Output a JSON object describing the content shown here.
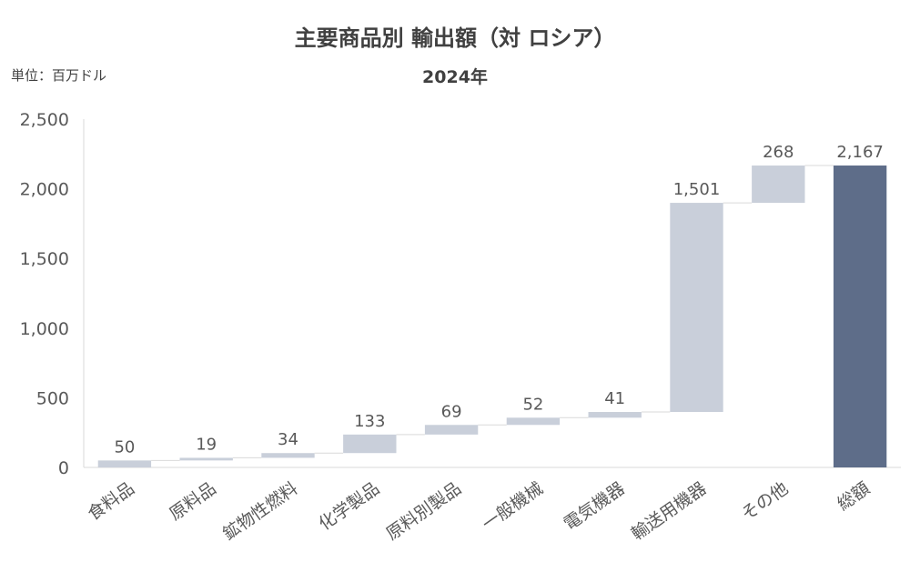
{
  "chart_data": {
    "type": "bar",
    "subtype": "waterfall",
    "title": "主要商品別 輸出額（対 ロシア）",
    "subtitle": "2024年",
    "unit_label": "単位：百万ドル",
    "categories": [
      "食料品",
      "原料品",
      "鉱物性燃料",
      "化学製品",
      "原料別製品",
      "一般機械",
      "電気機器",
      "輸送用機器",
      "その他",
      "総額"
    ],
    "values": [
      50,
      19,
      34,
      133,
      69,
      52,
      41,
      1501,
      268,
      2167
    ],
    "value_labels": [
      "50",
      "19",
      "34",
      "133",
      "69",
      "52",
      "41",
      "1,501",
      "268",
      "2,167"
    ],
    "total_index": 9,
    "ylim": [
      0,
      2500
    ],
    "yticks": [
      0,
      500,
      1000,
      1500,
      2000,
      2500
    ],
    "ytick_labels": [
      "0",
      "500",
      "1,000",
      "1,500",
      "2,000",
      "2,500"
    ],
    "grid": false,
    "colors": {
      "increment": "#c9cfda",
      "total": "#5e6d89",
      "axis": "#d9d9d9",
      "connector": "#d9d9d9",
      "text": "#595959"
    }
  }
}
